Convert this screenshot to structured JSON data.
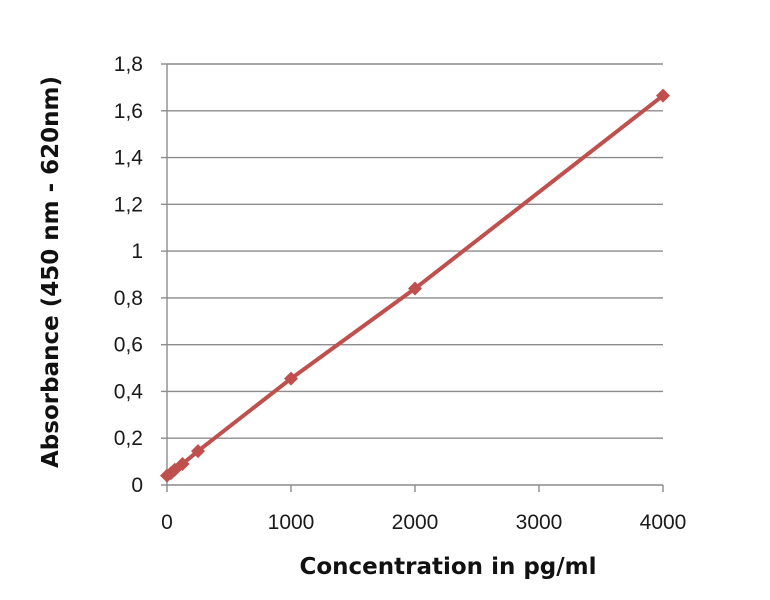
{
  "chart_data": {
    "type": "line",
    "title": "",
    "xlabel": "Concentration in pg/ml",
    "ylabel": "Absorbance (450 nm - 620nm)",
    "xlim": [
      0,
      4000
    ],
    "ylim": [
      0,
      1.8
    ],
    "x_ticks": [
      0,
      1000,
      2000,
      3000,
      4000
    ],
    "x_tick_labels": [
      "0",
      "1000",
      "2000",
      "3000",
      "4000"
    ],
    "y_ticks": [
      0,
      0.2,
      0.4,
      0.6,
      0.8,
      1.0,
      1.2,
      1.4,
      1.6,
      1.8
    ],
    "y_tick_labels": [
      "0",
      "0,2",
      "0,4",
      "0,6",
      "0,8",
      "1",
      "1,2",
      "1,4",
      "1,6",
      "1,8"
    ],
    "grid": "horizontal",
    "legend": "none",
    "series": [
      {
        "color": "#c0504d",
        "marker": "diamond",
        "x": [
          0,
          31.25,
          62.5,
          125,
          250,
          1000,
          2000,
          4000
        ],
        "y": [
          0.04,
          0.05,
          0.065,
          0.09,
          0.145,
          0.455,
          0.84,
          1.665
        ]
      }
    ]
  }
}
